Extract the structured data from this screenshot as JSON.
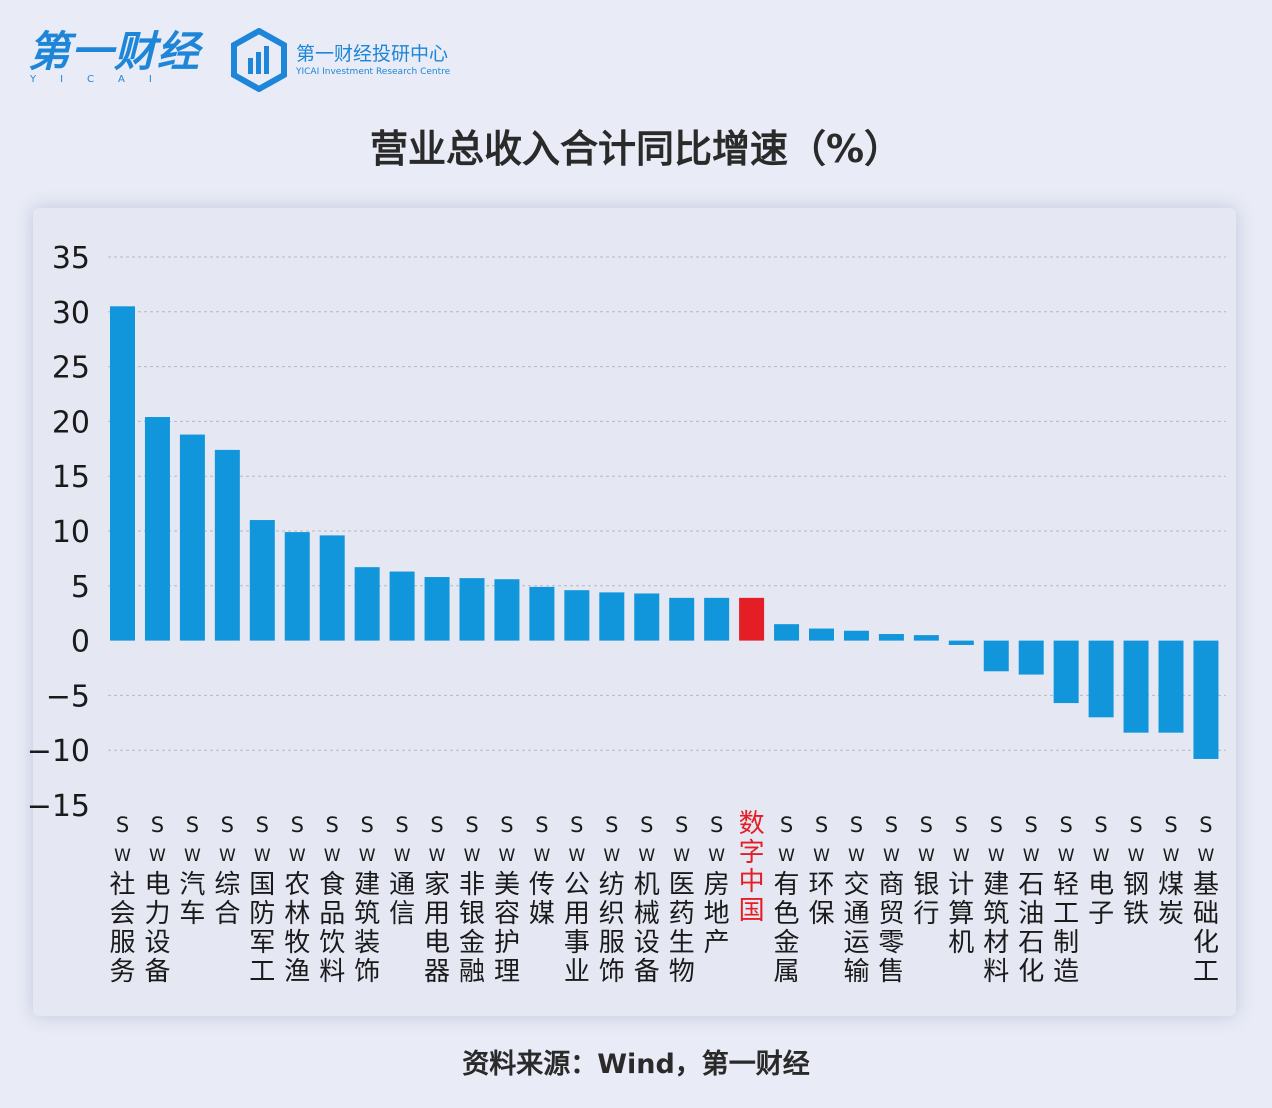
{
  "brand": {
    "name": "第一财经",
    "sub": "YICAI"
  },
  "research_center": {
    "cn": "第一财经投研中心",
    "en": "YICAI Investment Research Centre"
  },
  "source_text": "资料来源：Wind，第一财经",
  "colors": {
    "bar": "#1296db",
    "highlight": "#e31e24",
    "grid": "#b4b8c8",
    "label": "#1a1a1a"
  },
  "chart_data": {
    "type": "bar",
    "title": "营业总收入合计同比增速（%）",
    "xlabel": "",
    "ylabel": "",
    "ylim": [
      -15,
      35
    ],
    "yticks": [
      35,
      30,
      25,
      20,
      15,
      10,
      5,
      0,
      -5,
      -10,
      -15
    ],
    "ytick_labels": [
      "35",
      "30",
      "25",
      "20",
      "15",
      "10",
      "5",
      "0",
      "−5",
      "−10",
      "−15"
    ],
    "highlight_index": 18,
    "categories": [
      "SW社会服务",
      "SW电力设备",
      "SW汽车",
      "SW综合",
      "SW国防军工",
      "SW农林牧渔",
      "SW食品饮料",
      "SW建筑装饰",
      "SW通信",
      "SW家用电器",
      "SW非银金融",
      "SW美容护理",
      "SW传媒",
      "SW公用事业",
      "SW纺织服饰",
      "SW机械设备",
      "SW医药生物",
      "SW房地产",
      "数字中国",
      "SW有色金属",
      "SW环保",
      "SW交通运输",
      "SW商贸零售",
      "SW银行",
      "SW计算机",
      "SW建筑材料",
      "SW石油石化",
      "SW轻工制造",
      "SW电子",
      "SW钢铁",
      "SW煤炭",
      "SW基础化工"
    ],
    "values": [
      30.5,
      20.4,
      18.8,
      17.4,
      11.0,
      9.9,
      9.6,
      6.7,
      6.3,
      5.8,
      5.7,
      5.6,
      4.9,
      4.6,
      4.4,
      4.3,
      3.9,
      3.9,
      3.9,
      1.5,
      1.1,
      0.9,
      0.6,
      0.5,
      -0.4,
      -2.8,
      -3.1,
      -5.7,
      -7.0,
      -8.4,
      -8.4,
      -10.8
    ]
  }
}
